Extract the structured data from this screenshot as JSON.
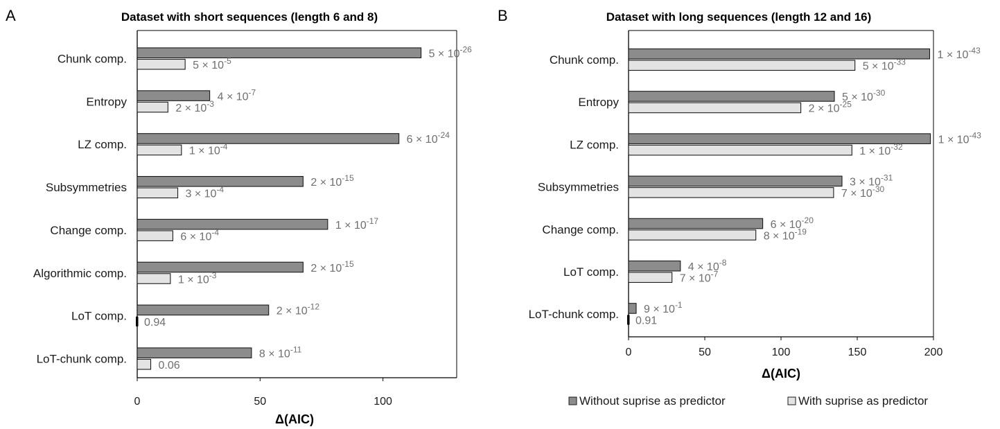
{
  "legend": {
    "without_label": "Without suprise as predictor",
    "with_label": "With suprise as predictor"
  },
  "colors": {
    "without": "#8c8c8c",
    "with": "#e3e3e3",
    "stroke": "#1a1a1a",
    "zero_marker": "#000000"
  },
  "chart_data": [
    {
      "type": "bar",
      "orientation": "horizontal",
      "panel_label": "A",
      "title": "Dataset with short sequences (length 6 and 8)",
      "xlabel": "Δ(AIC)",
      "ylabel": "",
      "xlim": [
        0,
        130
      ],
      "xticks": [
        0,
        50,
        100
      ],
      "categories": [
        "Chunk comp.",
        "Entropy",
        "LZ comp.",
        "Subsymmetries",
        "Change comp.",
        "Algorithmic comp.",
        "LoT comp.",
        "LoT-chunk comp."
      ],
      "series": [
        {
          "name": "Without suprise as predictor",
          "values": [
            115.5,
            29.5,
            106.5,
            67.5,
            77.5,
            67.5,
            53.5,
            46.5
          ],
          "labels": [
            [
              "5",
              "-26"
            ],
            [
              "4",
              "-7"
            ],
            [
              "6",
              "-24"
            ],
            [
              "2",
              "-15"
            ],
            [
              "1",
              "-17"
            ],
            [
              "2",
              "-15"
            ],
            [
              "2",
              "-12"
            ],
            [
              "8",
              "-11"
            ]
          ]
        },
        {
          "name": "With suprise as predictor",
          "values": [
            19.5,
            12.5,
            18,
            16.5,
            14.5,
            13.5,
            0,
            5.5
          ],
          "labels": [
            [
              "5",
              "-5"
            ],
            [
              "2",
              "-3"
            ],
            [
              "1",
              "-4"
            ],
            [
              "3",
              "-4"
            ],
            [
              "6",
              "-4"
            ],
            [
              "1",
              "-3"
            ],
            [
              "0.94",
              ""
            ],
            [
              "0.06",
              ""
            ]
          ]
        }
      ]
    },
    {
      "type": "bar",
      "orientation": "horizontal",
      "panel_label": "B",
      "title": "Dataset with long sequences (length 12 and 16)",
      "xlabel": "Δ(AIC)",
      "ylabel": "",
      "xlim": [
        0,
        200
      ],
      "xticks": [
        0,
        50,
        100,
        150,
        200
      ],
      "categories": [
        "Chunk comp.",
        "Entropy",
        "LZ comp.",
        "Subsymmetries",
        "Change comp.",
        "LoT comp.",
        "LoT-chunk comp."
      ],
      "series": [
        {
          "name": "Without suprise as predictor",
          "values": [
            197.5,
            135,
            198,
            140,
            88,
            34,
            5
          ],
          "labels": [
            [
              "1",
              "-43"
            ],
            [
              "5",
              "-30"
            ],
            [
              "1",
              "-43"
            ],
            [
              "3",
              "-31"
            ],
            [
              "6",
              "-20"
            ],
            [
              "4",
              "-8"
            ],
            [
              "9",
              "-1"
            ]
          ]
        },
        {
          "name": "With suprise as predictor",
          "values": [
            148.5,
            113,
            146.5,
            134.5,
            83.5,
            28.5,
            0
          ],
          "labels": [
            [
              "5",
              "-33"
            ],
            [
              "2",
              "-25"
            ],
            [
              "1",
              "-32"
            ],
            [
              "7",
              "-30"
            ],
            [
              "8",
              "-19"
            ],
            [
              "7",
              "-7"
            ],
            [
              "0.91",
              ""
            ]
          ]
        }
      ]
    }
  ]
}
